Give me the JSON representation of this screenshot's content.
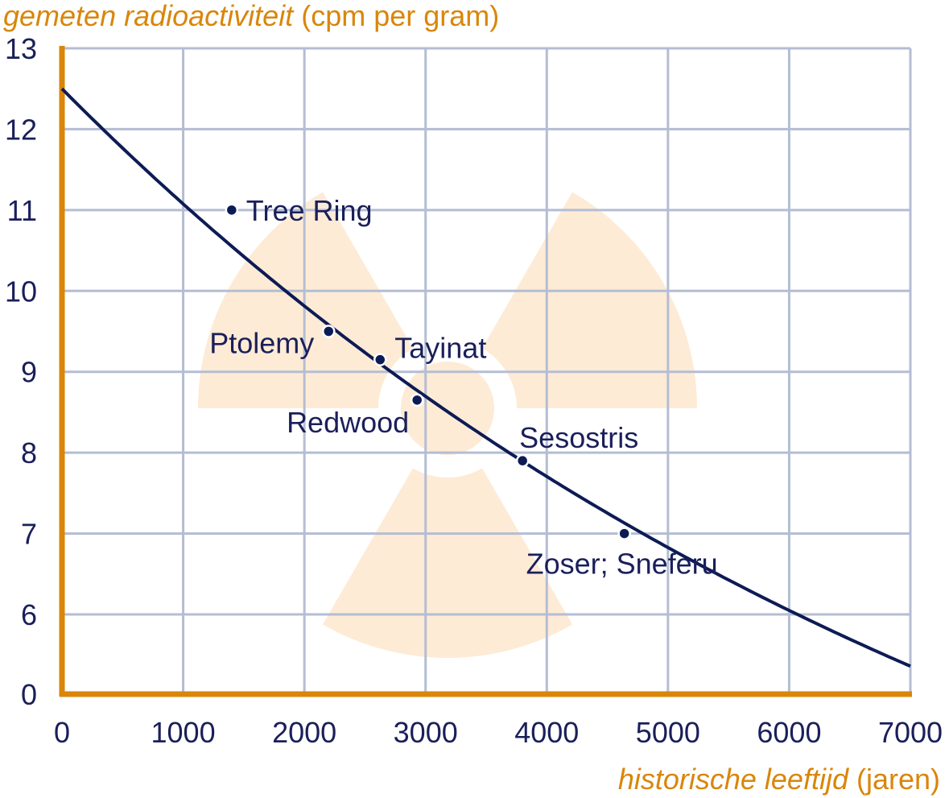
{
  "chart_data": {
    "type": "scatter",
    "ylabel": {
      "italic": "gemeten radioactiviteit",
      "unit": " (cpm per gram)"
    },
    "xlabel": {
      "italic": "historische leeftijd",
      "unit": " (jaren)"
    },
    "xlim": [
      0,
      7000
    ],
    "ylim": [
      5,
      13
    ],
    "x_ticks": [
      1000,
      2000,
      3000,
      4000,
      5000,
      6000,
      7000
    ],
    "x_origin_label": "0",
    "y_ticks": [
      6,
      7,
      8,
      9,
      10,
      11,
      12,
      13
    ],
    "y_origin_label": "0",
    "y_axis_break": true,
    "grid": true,
    "curve": {
      "y0": 12.5,
      "half_life_years": 5730
    },
    "points": [
      {
        "label": "Tree Ring",
        "x": 1400,
        "y": 11.0
      },
      {
        "label": "Ptolemy",
        "x": 2200,
        "y": 9.5
      },
      {
        "label": "Tayinat",
        "x": 2625,
        "y": 9.15
      },
      {
        "label": "Redwood",
        "x": 2930,
        "y": 8.65
      },
      {
        "label": "Sesostris",
        "x": 3800,
        "y": 7.9
      },
      {
        "label": "Zoser; Sneferu",
        "x": 4640,
        "y": 7.0
      }
    ],
    "background_symbol": "radiation-trefoil-icon",
    "colors": {
      "axis": "#d9860a",
      "grid": "#b4bdd3",
      "curve": "#0d1b55",
      "trefoil": "#fdebd6",
      "text": "#1a1f5a"
    }
  }
}
